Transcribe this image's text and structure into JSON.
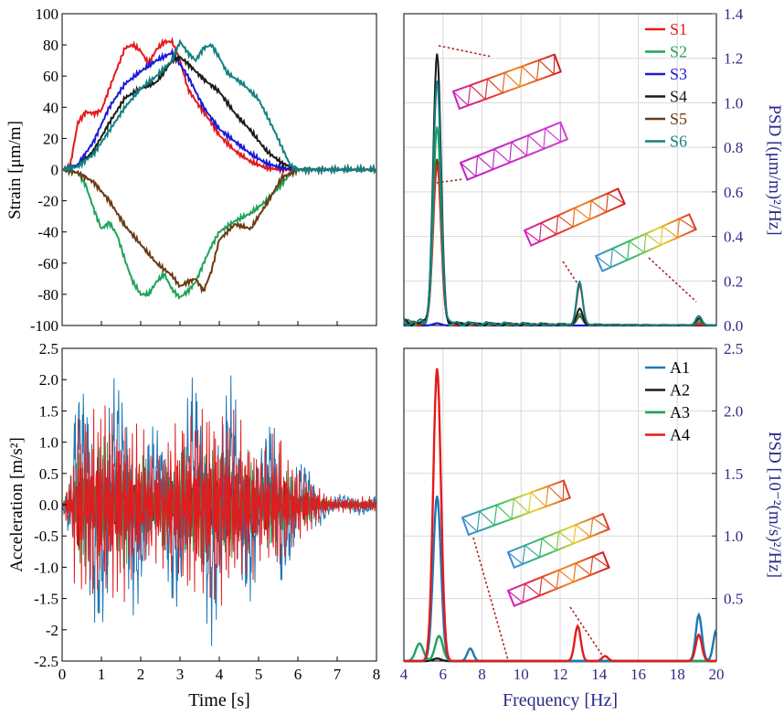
{
  "colors": {
    "S1": "#e41a1c",
    "S2": "#1fa35a",
    "S3": "#1a1ad8",
    "S4": "#1a1a1a",
    "S5": "#6b3a14",
    "S6": "#128080",
    "A1": "#1f77b4",
    "A2": "#1a1a1a",
    "A3": "#1fa35a",
    "A4": "#e41a1c",
    "psd_axis": "#2b2b88",
    "grid": "#d9d9d9",
    "annot": "#b22222"
  },
  "chart_data": [
    {
      "id": "strain_time",
      "type": "line",
      "ylabel": "Strain [μm/m]",
      "xlim": [
        0,
        8
      ],
      "ylim": [
        -100,
        100
      ],
      "yticks": [
        -100,
        -80,
        -60,
        -40,
        -20,
        0,
        20,
        40,
        60,
        80,
        100
      ],
      "xticks": [
        0,
        1,
        2,
        3,
        4,
        5,
        6,
        7,
        8
      ],
      "series": [
        {
          "name": "S1",
          "x": [
            0,
            0.2,
            0.4,
            0.6,
            0.8,
            1.0,
            1.2,
            1.4,
            1.6,
            1.8,
            2.0,
            2.2,
            2.4,
            2.6,
            2.8,
            3.0,
            3.2,
            3.4,
            3.6,
            3.8,
            4.0,
            4.4,
            4.8,
            5.2,
            5.6,
            6.0,
            8.0
          ],
          "y": [
            0,
            2,
            30,
            37,
            36,
            38,
            52,
            65,
            78,
            80,
            76,
            68,
            77,
            82,
            82,
            70,
            52,
            44,
            37,
            30,
            22,
            12,
            5,
            1,
            0,
            0,
            0
          ]
        },
        {
          "name": "S2",
          "x": [
            0,
            0.4,
            0.6,
            0.8,
            1.0,
            1.2,
            1.4,
            1.6,
            1.8,
            2.0,
            2.2,
            2.4,
            2.6,
            2.8,
            3.0,
            3.2,
            3.4,
            3.6,
            3.8,
            4.0,
            4.4,
            4.8,
            5.2,
            5.6,
            5.8,
            6.0,
            8.0
          ],
          "y": [
            0,
            -2,
            -10,
            -25,
            -38,
            -34,
            -42,
            -58,
            -72,
            -80,
            -80,
            -72,
            -67,
            -77,
            -82,
            -78,
            -72,
            -60,
            -49,
            -40,
            -33,
            -28,
            -20,
            -9,
            -3,
            0,
            0
          ]
        },
        {
          "name": "S3",
          "x": [
            0,
            0.4,
            0.8,
            1.2,
            1.6,
            2.0,
            2.4,
            2.8,
            3.2,
            3.6,
            4.0,
            4.4,
            4.8,
            5.2,
            5.6,
            6.0,
            8.0
          ],
          "y": [
            0,
            3,
            18,
            40,
            55,
            63,
            70,
            75,
            60,
            40,
            26,
            18,
            10,
            4,
            1,
            0,
            0
          ]
        },
        {
          "name": "S4",
          "x": [
            0,
            0.4,
            0.8,
            1.2,
            1.6,
            2.0,
            2.4,
            2.8,
            3.0,
            3.2,
            3.6,
            4.0,
            4.4,
            4.8,
            5.2,
            5.6,
            6.0,
            8.0
          ],
          "y": [
            0,
            2,
            12,
            30,
            46,
            52,
            56,
            70,
            72,
            68,
            58,
            50,
            36,
            25,
            12,
            4,
            0,
            0
          ]
        },
        {
          "name": "S5",
          "x": [
            0,
            0.4,
            0.8,
            1.2,
            1.6,
            2.0,
            2.4,
            2.8,
            3.0,
            3.2,
            3.4,
            3.6,
            3.8,
            4.0,
            4.4,
            4.8,
            5.2,
            5.6,
            6.0,
            8.0
          ],
          "y": [
            0,
            -2,
            -8,
            -20,
            -36,
            -48,
            -60,
            -68,
            -75,
            -72,
            -70,
            -78,
            -65,
            -45,
            -35,
            -38,
            -22,
            -5,
            0,
            0
          ]
        },
        {
          "name": "S6",
          "x": [
            0,
            0.4,
            0.8,
            1.2,
            1.6,
            2.0,
            2.4,
            2.8,
            3.0,
            3.2,
            3.4,
            3.6,
            3.8,
            4.0,
            4.2,
            4.6,
            5.0,
            5.4,
            5.8,
            6.0,
            8.0
          ],
          "y": [
            0,
            2,
            10,
            25,
            40,
            52,
            60,
            70,
            82,
            75,
            70,
            78,
            80,
            72,
            62,
            55,
            45,
            25,
            3,
            0,
            0
          ]
        }
      ]
    },
    {
      "id": "strain_psd",
      "type": "line",
      "xlabel": "",
      "ylabel": "PSD [(μm/m)²/Hz]",
      "xlim": [
        4,
        20
      ],
      "ylim": [
        0,
        1.4
      ],
      "yticks": [
        0.0,
        0.2,
        0.4,
        0.6,
        0.8,
        1.0,
        1.2,
        1.4
      ],
      "peaks_hz": [
        5.7,
        13.0,
        19.1
      ],
      "series": [
        {
          "name": "S1",
          "peaks": [
            [
              5.7,
              0.72
            ],
            [
              13.0,
              0.18
            ],
            [
              19.1,
              0.01
            ]
          ],
          "noise": 0.015
        },
        {
          "name": "S2",
          "peaks": [
            [
              5.7,
              0.88
            ],
            [
              13.0,
              0.05
            ],
            [
              19.1,
              0.02
            ]
          ],
          "noise": 0.02
        },
        {
          "name": "S3",
          "peaks": [
            [
              5.7,
              0.01
            ]
          ],
          "noise": 0.0
        },
        {
          "name": "S4",
          "peaks": [
            [
              5.7,
              1.21
            ],
            [
              13.0,
              0.07
            ],
            [
              19.1,
              0.03
            ]
          ],
          "noise": 0.02
        },
        {
          "name": "S5",
          "peaks": [
            [
              5.7,
              0.75
            ],
            [
              13.0,
              0.04
            ]
          ],
          "noise": 0.015
        },
        {
          "name": "S6",
          "peaks": [
            [
              5.7,
              1.08
            ],
            [
              13.0,
              0.19
            ],
            [
              19.1,
              0.04
            ]
          ],
          "noise": 0.025
        }
      ]
    },
    {
      "id": "accel_time",
      "type": "line",
      "xlabel": "Time [s]",
      "ylabel": "Acceleration [m/s²]",
      "xlim": [
        0,
        8
      ],
      "ylim": [
        -2.5,
        2.5
      ],
      "yticks": [
        -2.5,
        -2,
        -1.5,
        -1.0,
        -0.5,
        0.0,
        0.5,
        1.0,
        1.5,
        2.0,
        2.5
      ],
      "xticks": [
        0,
        1,
        2,
        3,
        4,
        5,
        6,
        7,
        8
      ],
      "series": [
        {
          "name": "A1",
          "amplitude": 1.7
        },
        {
          "name": "A2",
          "amplitude": 0.6
        },
        {
          "name": "A3",
          "amplitude": 0.9
        },
        {
          "name": "A4",
          "amplitude": 1.4
        }
      ]
    },
    {
      "id": "accel_psd",
      "type": "line",
      "xlabel": "Frequency [Hz]",
      "ylabel": "PSD [10⁻²(m/s)²/Hz]",
      "xlim": [
        4,
        20
      ],
      "ylim": [
        0,
        2.5
      ],
      "yticks": [
        0.5,
        1.0,
        1.5,
        2.0,
        2.5
      ],
      "xticks": [
        4,
        6,
        8,
        10,
        12,
        14,
        16,
        18,
        20
      ],
      "series": [
        {
          "name": "A1",
          "peaks": [
            [
              5.7,
              1.32
            ],
            [
              7.4,
              0.1
            ],
            [
              19.1,
              0.37
            ],
            [
              20.0,
              0.25
            ]
          ]
        },
        {
          "name": "A2",
          "peaks": [
            [
              5.7,
              0.02
            ]
          ]
        },
        {
          "name": "A3",
          "peaks": [
            [
              4.8,
              0.14
            ],
            [
              5.8,
              0.2
            ]
          ]
        },
        {
          "name": "A4",
          "peaks": [
            [
              5.7,
              2.34
            ],
            [
              12.9,
              0.28
            ],
            [
              14.3,
              0.04
            ],
            [
              19.1,
              0.21
            ]
          ]
        }
      ]
    }
  ]
}
